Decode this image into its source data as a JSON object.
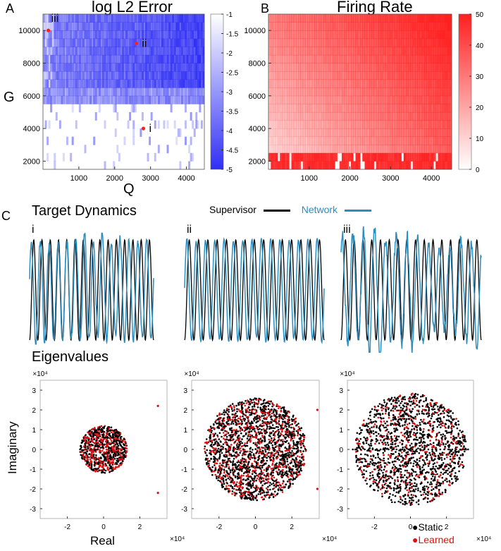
{
  "labels": {
    "A": "A",
    "B": "B",
    "C": "C",
    "G": "G",
    "Q": "Q"
  },
  "panel_a": {
    "title": "log L2 Error"
  },
  "panel_b": {
    "title": "Firing Rate"
  },
  "panel_c": {
    "title": "Target Dynamics",
    "sub_labels": [
      "i",
      "ii",
      "iii"
    ],
    "legend": {
      "supervisor": "Supervisor",
      "network": "Network"
    }
  },
  "eigen": {
    "title": "Eigenvalues",
    "ylabel": "Imaginary",
    "xlabel": "Real",
    "exponent": "×10⁴",
    "legend": {
      "static": "Static",
      "learned": "Learned"
    }
  },
  "colors": {
    "blue": "#2f2ff5",
    "red": "#ff1f1f",
    "network": "#2a8ec0",
    "supervisor": "#000000"
  },
  "chart_data": [
    {
      "type": "heatmap",
      "title": "log L2 Error",
      "xlabel": "Q",
      "ylabel": "G",
      "x_ticks": [
        1000,
        2000,
        3000,
        4000
      ],
      "y_ticks": [
        2000,
        4000,
        6000,
        8000,
        10000
      ],
      "xlim": [
        0,
        4500
      ],
      "ylim": [
        1500,
        11000
      ],
      "colorbar": {
        "range": [
          -5,
          -1
        ],
        "ticks": [
          "-1",
          "-1.5",
          "-2",
          "-2.5",
          "-3",
          "-3.5",
          "-4",
          "-4.5",
          "-5"
        ]
      },
      "annotations": [
        {
          "label": "i",
          "Q": 2800,
          "G": 4000
        },
        {
          "label": "ii",
          "Q": 2600,
          "G": 9200
        },
        {
          "label": "iii",
          "Q": 150,
          "G": 10000
        }
      ]
    },
    {
      "type": "heatmap",
      "title": "Firing Rate",
      "x_ticks": [
        1000,
        2000,
        3000,
        4000
      ],
      "y_ticks": [
        2000,
        4000,
        6000,
        8000,
        10000
      ],
      "xlim": [
        0,
        4500
      ],
      "ylim": [
        1500,
        11000
      ],
      "colorbar": {
        "range": [
          0,
          50
        ],
        "ticks": [
          "50",
          "40",
          "30",
          "20",
          "10",
          "0"
        ]
      }
    },
    {
      "type": "line",
      "title": "Target Dynamics",
      "series": [
        {
          "name": "Supervisor",
          "panels": [
            "i",
            "ii",
            "iii"
          ],
          "cycles": [
            15,
            15,
            16
          ]
        },
        {
          "name": "Network",
          "panels": [
            "i",
            "ii",
            "iii"
          ],
          "cycles": [
            14,
            15,
            13
          ]
        }
      ]
    },
    {
      "type": "scatter",
      "title": "Eigenvalues",
      "xlabel": "Real",
      "ylabel": "Imaginary",
      "x_ticks": [
        -2,
        0,
        2
      ],
      "y_ticks": [
        -3,
        -2,
        -1,
        0,
        1,
        2,
        3
      ],
      "xlim": [
        -3.5,
        3.5
      ],
      "ylim": [
        -3.5,
        3.5
      ],
      "units": "×10⁴",
      "panels": [
        {
          "name": "i",
          "radius": 1.3,
          "outliers": [
            [
              3.0,
              2.2
            ],
            [
              3.0,
              -2.2
            ]
          ]
        },
        {
          "name": "ii",
          "radius": 2.8,
          "outliers": [
            [
              3.4,
              2.0
            ],
            [
              3.4,
              -2.0
            ]
          ]
        },
        {
          "name": "iii",
          "radius": 3.1,
          "outliers": []
        }
      ]
    }
  ]
}
